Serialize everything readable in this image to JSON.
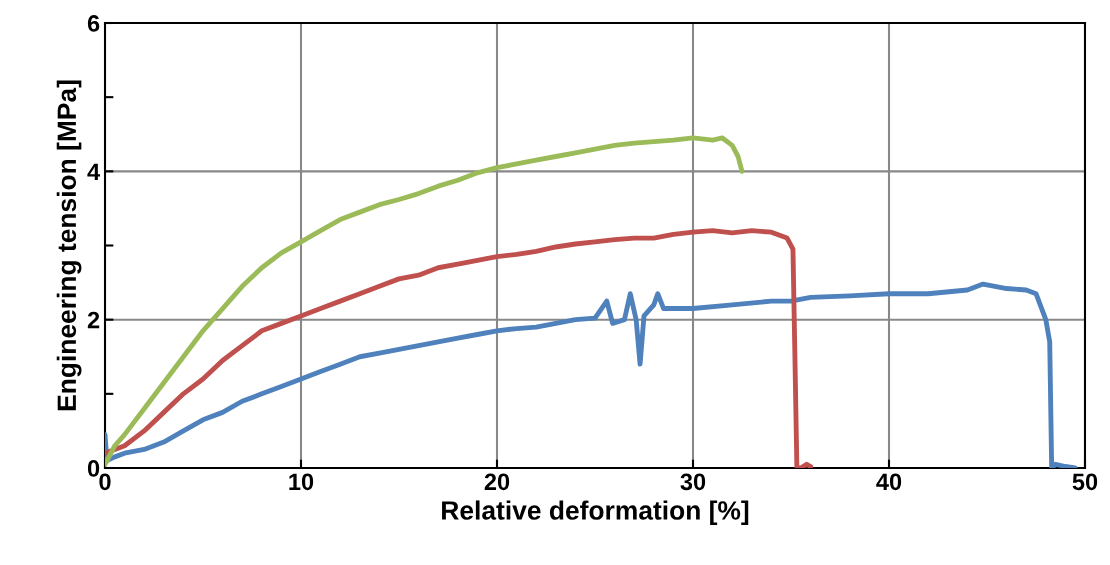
{
  "chart_data": {
    "type": "line",
    "xlabel": "Relative deformation [%]",
    "ylabel": "Engineering tension [MPa]",
    "xlim": [
      0,
      50
    ],
    "xticks": [
      0,
      10,
      20,
      30,
      40,
      50
    ],
    "ylim": [
      0,
      6
    ],
    "yticks": [
      0,
      {
        "value": 1,
        "label": null
      },
      2,
      {
        "value": 3,
        "label": null
      },
      4,
      {
        "value": 5,
        "label": null
      },
      6
    ],
    "grid": true,
    "marker": "none",
    "line_style": "solid",
    "series": [
      {
        "color": "#4f81bd",
        "x": [
          0,
          0.1,
          0.5,
          1,
          2,
          3,
          4,
          5,
          6,
          7,
          8,
          9,
          10,
          11,
          12,
          13,
          14,
          15,
          16,
          17,
          18,
          19,
          20,
          21,
          22,
          23,
          24,
          25,
          25.6,
          25.9,
          26.5,
          26.8,
          27.1,
          27.3,
          27.5,
          28,
          28.2,
          28.5,
          30,
          32,
          34,
          35,
          36,
          38,
          40,
          42,
          44,
          44.8,
          46,
          47,
          47.5,
          48,
          48.2,
          48.3,
          48.5,
          49,
          49.5
        ],
        "values": [
          0.45,
          0.1,
          0.15,
          0.2,
          0.25,
          0.35,
          0.5,
          0.65,
          0.75,
          0.9,
          1.0,
          1.1,
          1.2,
          1.3,
          1.4,
          1.5,
          1.55,
          1.6,
          1.65,
          1.7,
          1.75,
          1.8,
          1.85,
          1.88,
          1.9,
          1.95,
          2.0,
          2.02,
          2.25,
          1.95,
          2.0,
          2.35,
          2.0,
          1.4,
          2.05,
          2.2,
          2.35,
          2.15,
          2.15,
          2.2,
          2.25,
          2.25,
          2.3,
          2.32,
          2.35,
          2.35,
          2.4,
          2.48,
          2.42,
          2.4,
          2.35,
          2.0,
          1.7,
          0.0,
          0.05,
          0.02,
          0.0
        ]
      },
      {
        "color": "#c0504d",
        "x": [
          0,
          0.5,
          1,
          2,
          3,
          4,
          5,
          6,
          7,
          8,
          9,
          10,
          11,
          12,
          13,
          14,
          15,
          16,
          17,
          18,
          19,
          20,
          21,
          22,
          23,
          24,
          25,
          26,
          27,
          28,
          29,
          30,
          31,
          32,
          33,
          34,
          34.8,
          35.1,
          35.2,
          35.3,
          35.5,
          35.8,
          36
        ],
        "values": [
          0.2,
          0.25,
          0.3,
          0.5,
          0.75,
          1.0,
          1.2,
          1.45,
          1.65,
          1.85,
          1.95,
          2.05,
          2.15,
          2.25,
          2.35,
          2.45,
          2.55,
          2.6,
          2.7,
          2.75,
          2.8,
          2.85,
          2.88,
          2.92,
          2.98,
          3.02,
          3.05,
          3.08,
          3.1,
          3.1,
          3.15,
          3.18,
          3.2,
          3.17,
          3.2,
          3.18,
          3.1,
          2.95,
          1.5,
          0.0,
          0.0,
          0.05,
          0.02
        ]
      },
      {
        "color": "#9bbb59",
        "x": [
          0,
          0.5,
          1,
          2,
          3,
          4,
          5,
          6,
          7,
          8,
          9,
          10,
          11,
          12,
          13,
          14,
          15,
          16,
          17,
          18,
          19,
          20,
          21,
          22,
          23,
          24,
          25,
          26,
          27,
          28,
          29,
          30,
          31,
          31.5,
          32,
          32.3,
          32.5
        ],
        "values": [
          0.05,
          0.3,
          0.45,
          0.8,
          1.15,
          1.5,
          1.85,
          2.15,
          2.45,
          2.7,
          2.9,
          3.05,
          3.2,
          3.35,
          3.45,
          3.55,
          3.62,
          3.7,
          3.8,
          3.88,
          3.98,
          4.05,
          4.1,
          4.15,
          4.2,
          4.25,
          4.3,
          4.35,
          4.38,
          4.4,
          4.42,
          4.45,
          4.42,
          4.45,
          4.35,
          4.2,
          4.0
        ]
      }
    ]
  }
}
